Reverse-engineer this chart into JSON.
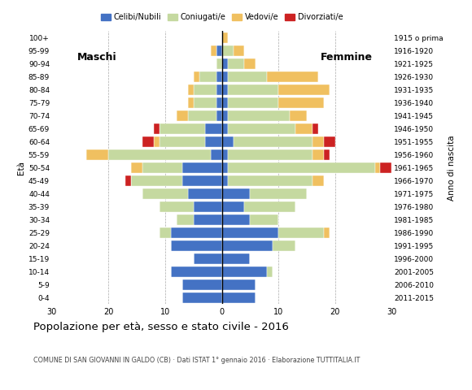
{
  "age_groups": [
    "0-4",
    "5-9",
    "10-14",
    "15-19",
    "20-24",
    "25-29",
    "30-34",
    "35-39",
    "40-44",
    "45-49",
    "50-54",
    "55-59",
    "60-64",
    "65-69",
    "70-74",
    "75-79",
    "80-84",
    "85-89",
    "90-94",
    "95-99",
    "100+"
  ],
  "birth_years": [
    "2011-2015",
    "2006-2010",
    "2001-2005",
    "1996-2000",
    "1991-1995",
    "1986-1990",
    "1981-1985",
    "1976-1980",
    "1971-1975",
    "1966-1970",
    "1961-1965",
    "1956-1960",
    "1951-1955",
    "1946-1950",
    "1941-1945",
    "1936-1940",
    "1931-1935",
    "1926-1930",
    "1921-1925",
    "1916-1920",
    "1915 o prima"
  ],
  "colors": {
    "celibe": "#4472c4",
    "coniugato": "#c5d9a0",
    "vedovo": "#f0c060",
    "divorziato": "#cc2222"
  },
  "males": {
    "celibe": [
      7,
      7,
      9,
      5,
      9,
      9,
      5,
      5,
      6,
      7,
      7,
      2,
      3,
      3,
      1,
      1,
      1,
      1,
      0,
      1,
      0
    ],
    "coniugato": [
      0,
      0,
      0,
      0,
      0,
      2,
      3,
      6,
      8,
      9,
      7,
      18,
      8,
      8,
      5,
      4,
      4,
      3,
      1,
      0,
      0
    ],
    "vedovo": [
      0,
      0,
      0,
      0,
      0,
      0,
      0,
      0,
      0,
      0,
      2,
      4,
      1,
      0,
      2,
      1,
      1,
      1,
      0,
      1,
      0
    ],
    "divorziato": [
      0,
      0,
      0,
      0,
      0,
      0,
      0,
      0,
      0,
      1,
      0,
      0,
      2,
      1,
      0,
      0,
      0,
      0,
      0,
      0,
      0
    ]
  },
  "females": {
    "celibe": [
      6,
      6,
      8,
      5,
      9,
      10,
      5,
      4,
      5,
      1,
      1,
      1,
      2,
      1,
      1,
      1,
      1,
      1,
      1,
      0,
      0
    ],
    "coniugato": [
      0,
      0,
      1,
      0,
      4,
      8,
      5,
      9,
      10,
      15,
      26,
      15,
      14,
      12,
      11,
      9,
      9,
      7,
      3,
      2,
      0
    ],
    "vedovo": [
      0,
      0,
      0,
      0,
      0,
      1,
      0,
      0,
      0,
      2,
      1,
      2,
      2,
      3,
      3,
      8,
      9,
      9,
      2,
      2,
      1
    ],
    "divorziato": [
      0,
      0,
      0,
      0,
      0,
      0,
      0,
      0,
      0,
      0,
      2,
      1,
      2,
      1,
      0,
      0,
      0,
      0,
      0,
      0,
      0
    ]
  },
  "title": "Popolazione per età, sesso e stato civile - 2016",
  "subtitle": "COMUNE DI SAN GIOVANNI IN GALDO (CB) · Dati ISTAT 1° gennaio 2016 · Elaborazione TUTTITALIA.IT",
  "xlim": 30,
  "xlabel_left": "Maschi",
  "xlabel_right": "Femmine",
  "ylabel": "Età",
  "ylabel_right": "Anno di nascita",
  "legend_labels": [
    "Celibi/Nubili",
    "Coniugati/e",
    "Vedovi/e",
    "Divorziati/e"
  ]
}
